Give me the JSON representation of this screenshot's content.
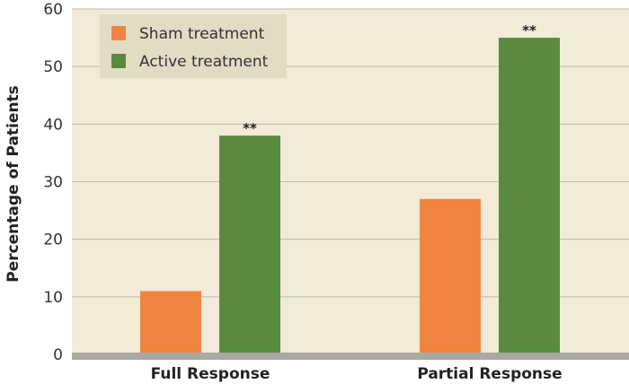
{
  "chart_data": {
    "type": "bar",
    "title": "",
    "xlabel": "",
    "ylabel": "Percentage of Patients",
    "ylim": [
      0,
      60
    ],
    "yticks": [
      0,
      10,
      20,
      30,
      40,
      50,
      60
    ],
    "grid": true,
    "legend_position": "top-left",
    "categories": [
      "Full Response",
      "Partial Response"
    ],
    "series": [
      {
        "name": "Sham treatment",
        "values": [
          11,
          27
        ],
        "color": "#ef8540"
      },
      {
        "name": "Active treatment",
        "values": [
          38,
          55
        ],
        "color": "#5a8a3e"
      }
    ],
    "annotations": [
      {
        "category": "Full Response",
        "series": "Active treatment",
        "text": "**"
      },
      {
        "category": "Partial Response",
        "series": "Active treatment",
        "text": "**"
      }
    ],
    "background_color": "#f1ebd8",
    "gridline_color": "#bdb8a4",
    "baseline_color": "#a9a8a1",
    "legend_background_color": "#e3dcc4"
  }
}
